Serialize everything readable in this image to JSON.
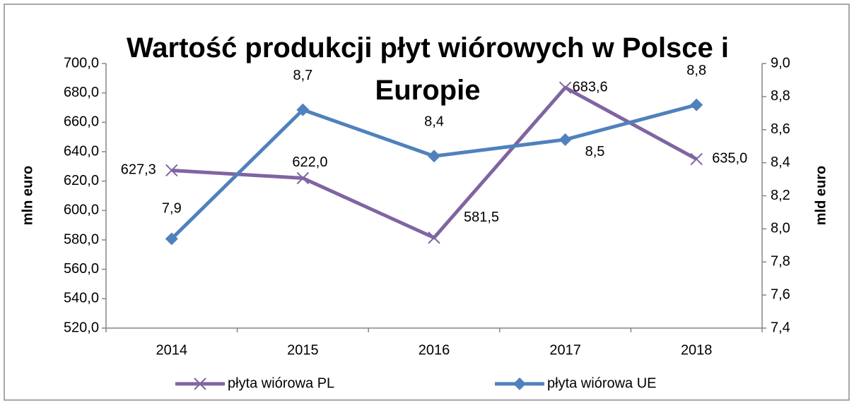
{
  "chart_data": {
    "type": "line",
    "title": "Wartość produkcji płyt wiórowych w Polsce i Europie",
    "ylabel": "mln euro",
    "y2label": "mld euro",
    "categories": [
      "2014",
      "2015",
      "2016",
      "2017",
      "2018"
    ],
    "series": [
      {
        "name": "płyta wiórowa PL",
        "color": "#8064a2",
        "marker": "x",
        "values": [
          627.3,
          622.0,
          581.5,
          683.6,
          635.0
        ],
        "value_labels": [
          "627,3",
          "622,0",
          "581,5",
          "683,6",
          "635,0"
        ]
      },
      {
        "name": "płyta wiórowa UE",
        "color": "#4f81bd",
        "marker": "diamond",
        "axis": "y2",
        "values": [
          7.94,
          8.72,
          8.44,
          8.54,
          8.75
        ],
        "value_labels": [
          "7,9",
          "8,7",
          "8,4",
          "8,5",
          "8,8"
        ]
      }
    ],
    "ylim": [
      520,
      700
    ],
    "yticks": [
      {
        "value": 520,
        "label": "520,0"
      },
      {
        "value": 540,
        "label": "540,0"
      },
      {
        "value": 560,
        "label": "560,0"
      },
      {
        "value": 580,
        "label": "580,0"
      },
      {
        "value": 600,
        "label": "600,0"
      },
      {
        "value": 620,
        "label": "620,0"
      },
      {
        "value": 640,
        "label": "640,0"
      },
      {
        "value": 660,
        "label": "660,0"
      },
      {
        "value": 680,
        "label": "680,0"
      },
      {
        "value": 700,
        "label": "700,0"
      }
    ],
    "y2lim": [
      7.4,
      9.0
    ],
    "y2ticks": [
      {
        "value": 7.4,
        "label": "7,4"
      },
      {
        "value": 7.6,
        "label": "7,6"
      },
      {
        "value": 7.8,
        "label": "7,8"
      },
      {
        "value": 8.0,
        "label": "8,0"
      },
      {
        "value": 8.2,
        "label": "8,2"
      },
      {
        "value": 8.4,
        "label": "8,4"
      },
      {
        "value": 8.6,
        "label": "8,6"
      },
      {
        "value": 8.8,
        "label": "8,8"
      },
      {
        "value": 9.0,
        "label": "9,0"
      }
    ],
    "legend": "bottom"
  }
}
